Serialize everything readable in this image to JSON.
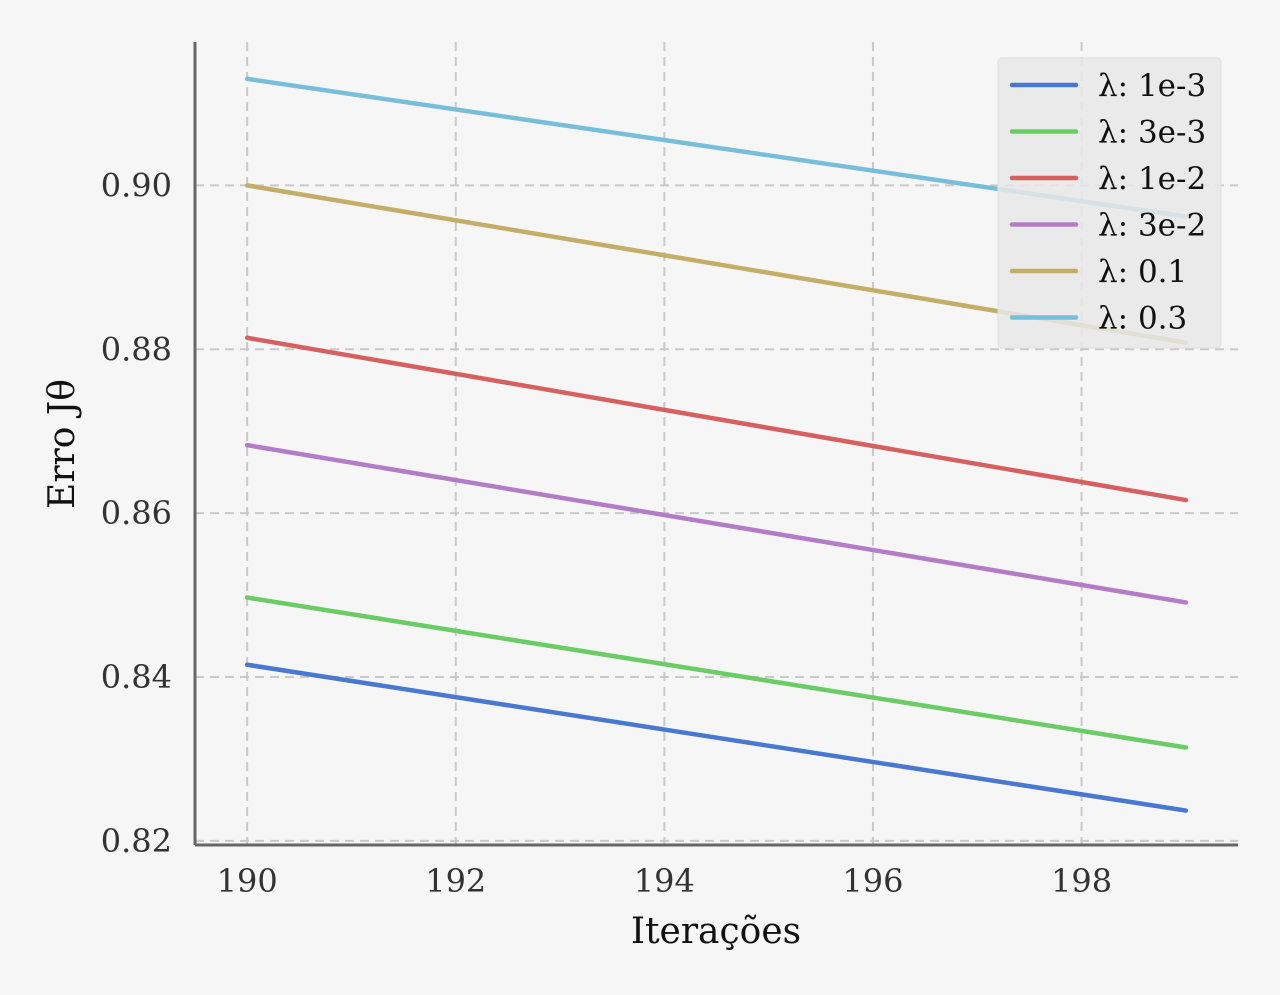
{
  "chart_data": {
    "type": "line",
    "xlabel": "Iterações",
    "ylabel": "Erro Jθ",
    "xlim": [
      189.5,
      199.5
    ],
    "ylim": [
      0.8195,
      0.9175
    ],
    "xticks": [
      190,
      192,
      194,
      196,
      198
    ],
    "xtick_labels": [
      "190",
      "192",
      "194",
      "196",
      "198"
    ],
    "yticks": [
      0.82,
      0.84,
      0.86,
      0.88,
      0.9
    ],
    "ytick_labels": [
      "0.82",
      "0.84",
      "0.86",
      "0.88",
      "0.90"
    ],
    "grid": true,
    "legend_position": "top-right",
    "x": [
      190,
      199
    ],
    "series": [
      {
        "name": "λ: 1e-3",
        "color": "#4878d0",
        "values": [
          0.8415,
          0.8237
        ]
      },
      {
        "name": "λ: 3e-3",
        "color": "#6acc64",
        "values": [
          0.8497,
          0.8314
        ]
      },
      {
        "name": "λ: 1e-2",
        "color": "#d65f5f",
        "values": [
          0.8814,
          0.8616
        ]
      },
      {
        "name": "λ: 3e-2",
        "color": "#b47cc7",
        "values": [
          0.8683,
          0.8491
        ]
      },
      {
        "name": "λ: 0.1",
        "color": "#c4ad66",
        "values": [
          0.9,
          0.8808
        ]
      },
      {
        "name": "λ: 0.3",
        "color": "#77bedb",
        "values": [
          0.913,
          0.8962
        ]
      }
    ]
  }
}
